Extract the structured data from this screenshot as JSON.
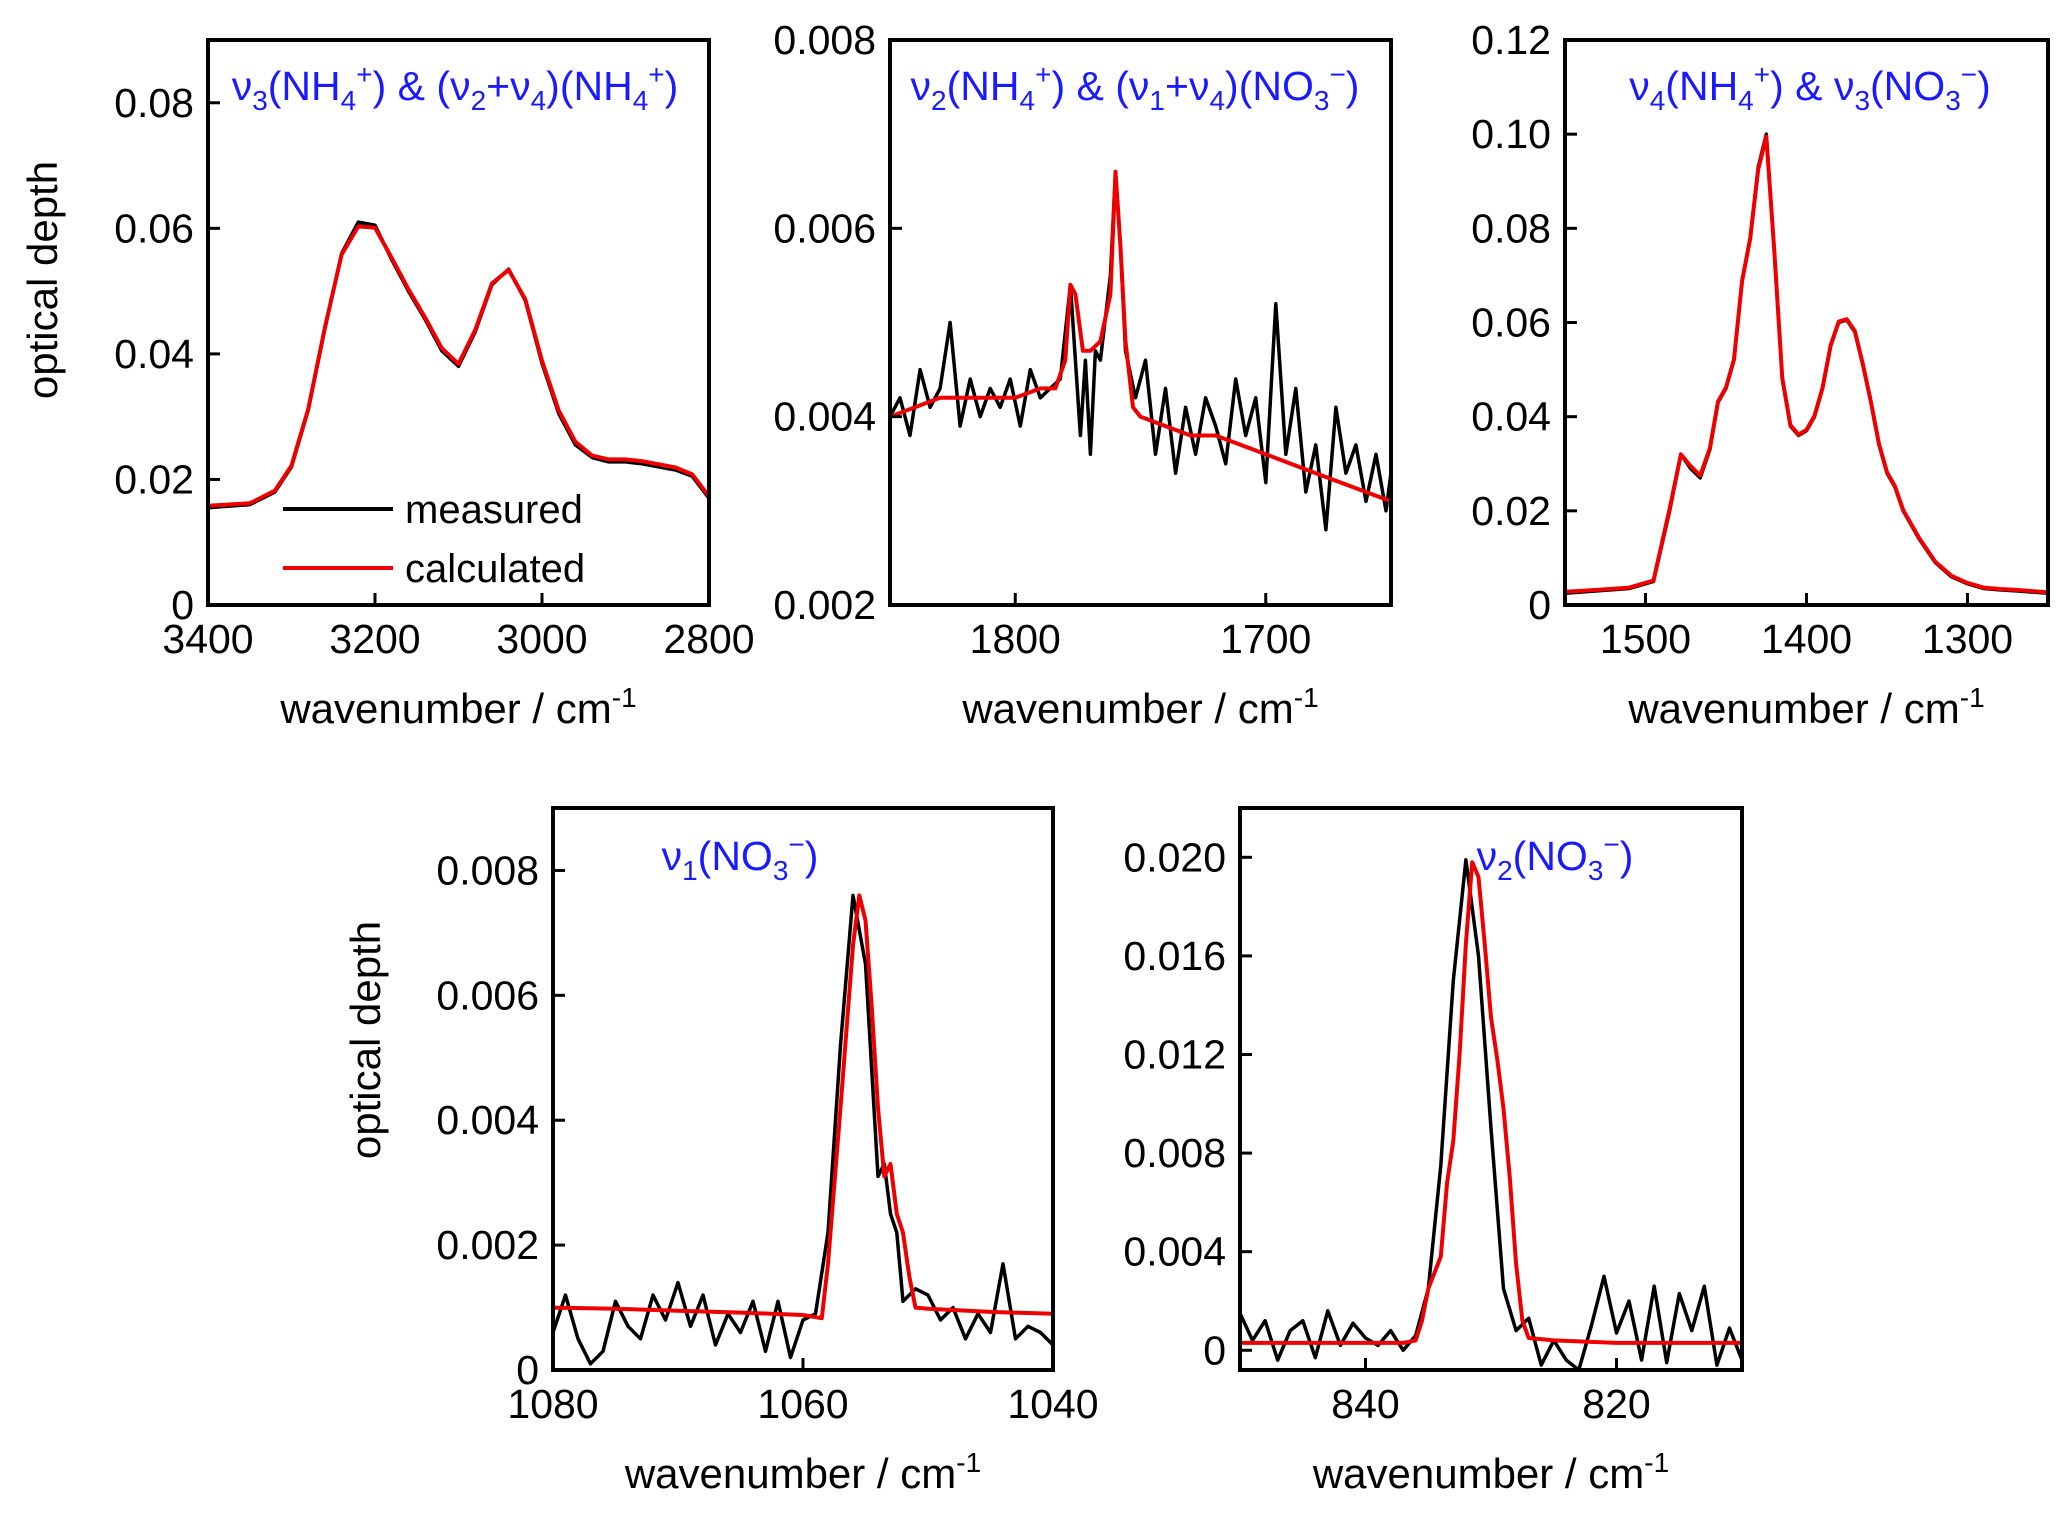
{
  "figure": {
    "ylabel": "optical depth",
    "xlabel": "wavenumber / cm",
    "xlabel_sup": "-1"
  },
  "legend": {
    "measured": "measured",
    "calculated": "calculated"
  },
  "colors": {
    "measured": "#000000",
    "calculated": "#ee0000",
    "annotation": "#1a1aff"
  },
  "chart_data": [
    {
      "type": "line",
      "title": "ν3(NH4+) & (ν2+ν4)(NH4+)",
      "xlabel": "wavenumber / cm-1",
      "ylabel": "optical depth",
      "xlim": [
        3400,
        2800
      ],
      "ylim": [
        0,
        0.09
      ],
      "xticks": [
        3400,
        3200,
        3000,
        2800
      ],
      "yticks": [
        0,
        0.02,
        0.04,
        0.06,
        0.08
      ],
      "ytick_labels": [
        "0",
        "0.02",
        "0.04",
        "0.06",
        "0.08"
      ],
      "legend": {
        "show": true,
        "placement": "bottom-center"
      },
      "series": [
        {
          "name": "measured",
          "x": [
            3400,
            3350,
            3320,
            3300,
            3280,
            3260,
            3240,
            3220,
            3200,
            3180,
            3160,
            3140,
            3120,
            3100,
            3080,
            3060,
            3040,
            3020,
            3000,
            2980,
            2960,
            2940,
            2920,
            2900,
            2880,
            2860,
            2840,
            2820,
            2800
          ],
          "y": [
            0.0155,
            0.016,
            0.018,
            0.022,
            0.031,
            0.044,
            0.056,
            0.061,
            0.0605,
            0.055,
            0.05,
            0.0455,
            0.0405,
            0.038,
            0.0435,
            0.051,
            0.0535,
            0.0485,
            0.0385,
            0.0305,
            0.0255,
            0.0235,
            0.0228,
            0.0228,
            0.0225,
            0.022,
            0.0215,
            0.0205,
            0.017
          ]
        },
        {
          "name": "calculated",
          "x": [
            3400,
            3350,
            3320,
            3300,
            3280,
            3260,
            3240,
            3220,
            3200,
            3180,
            3160,
            3140,
            3120,
            3100,
            3080,
            3060,
            3040,
            3020,
            3000,
            2980,
            2960,
            2940,
            2920,
            2900,
            2880,
            2860,
            2840,
            2820,
            2800
          ],
          "y": [
            0.0158,
            0.0162,
            0.0182,
            0.0222,
            0.0312,
            0.0442,
            0.0558,
            0.0603,
            0.0601,
            0.0553,
            0.0503,
            0.0458,
            0.0409,
            0.0384,
            0.0438,
            0.0512,
            0.0534,
            0.0487,
            0.0389,
            0.031,
            0.026,
            0.0238,
            0.0232,
            0.0232,
            0.0229,
            0.0224,
            0.0219,
            0.0208,
            0.0173
          ]
        }
      ]
    },
    {
      "type": "line",
      "title": "ν2(NH4+) & (ν1+ν4)(NO3−)",
      "xlabel": "wavenumber / cm-1",
      "ylabel": "",
      "xlim": [
        1850,
        1650
      ],
      "ylim": [
        0.002,
        0.008
      ],
      "xticks": [
        1800,
        1700
      ],
      "yticks": [
        0.002,
        0.004,
        0.006,
        0.008
      ],
      "ytick_labels": [
        "0.002",
        "0.004",
        "0.006",
        "0.008"
      ],
      "series": [
        {
          "name": "measured",
          "x": [
            1850,
            1846,
            1842,
            1838,
            1834,
            1830,
            1826,
            1822,
            1818,
            1814,
            1810,
            1806,
            1802,
            1798,
            1794,
            1790,
            1786,
            1782,
            1778,
            1774,
            1772,
            1770,
            1768,
            1766,
            1762,
            1760,
            1758,
            1756,
            1752,
            1748,
            1744,
            1740,
            1736,
            1732,
            1728,
            1724,
            1720,
            1716,
            1712,
            1708,
            1704,
            1700,
            1696,
            1692,
            1688,
            1684,
            1680,
            1676,
            1672,
            1668,
            1664,
            1660,
            1656,
            1652,
            1650
          ],
          "y": [
            0.004,
            0.0042,
            0.0038,
            0.0045,
            0.0041,
            0.0043,
            0.005,
            0.0039,
            0.0044,
            0.004,
            0.0043,
            0.0041,
            0.0044,
            0.0039,
            0.0045,
            0.0042,
            0.0043,
            0.0044,
            0.0054,
            0.0038,
            0.0046,
            0.0036,
            0.0047,
            0.0046,
            0.0055,
            0.0066,
            0.0058,
            0.0047,
            0.0042,
            0.0046,
            0.0036,
            0.0043,
            0.0034,
            0.0041,
            0.0036,
            0.0042,
            0.0039,
            0.0035,
            0.0044,
            0.0038,
            0.0042,
            0.0033,
            0.0052,
            0.0036,
            0.0043,
            0.0032,
            0.0037,
            0.0028,
            0.0041,
            0.0034,
            0.0037,
            0.0031,
            0.0036,
            0.003,
            0.0034
          ]
        },
        {
          "name": "calculated",
          "x": [
            1850,
            1840,
            1830,
            1820,
            1810,
            1800,
            1790,
            1784,
            1780,
            1778,
            1776,
            1773,
            1770,
            1766,
            1762,
            1760,
            1758,
            1756,
            1753,
            1750,
            1740,
            1730,
            1720,
            1710,
            1700,
            1690,
            1680,
            1670,
            1660,
            1650
          ],
          "y": [
            0.004,
            0.0041,
            0.0042,
            0.0042,
            0.0042,
            0.0042,
            0.0043,
            0.0043,
            0.0046,
            0.0054,
            0.0053,
            0.0047,
            0.0047,
            0.0048,
            0.0053,
            0.0066,
            0.0058,
            0.0048,
            0.0041,
            0.004,
            0.0039,
            0.0038,
            0.0038,
            0.0037,
            0.0036,
            0.0035,
            0.0034,
            0.0033,
            0.0032,
            0.0031
          ]
        }
      ]
    },
    {
      "type": "line",
      "title": "ν4(NH4+) & ν3(NO3−)",
      "xlabel": "wavenumber / cm-1",
      "ylabel": "",
      "xlim": [
        1550,
        1250
      ],
      "ylim": [
        0,
        0.12
      ],
      "xticks": [
        1500,
        1400,
        1300
      ],
      "yticks": [
        0,
        0.02,
        0.04,
        0.06,
        0.08,
        0.1,
        0.12
      ],
      "ytick_labels": [
        "0",
        "0.02",
        "0.04",
        "0.06",
        "0.08",
        "0.10",
        "0.12"
      ],
      "series": [
        {
          "name": "measured",
          "x": [
            1550,
            1530,
            1510,
            1495,
            1485,
            1478,
            1472,
            1466,
            1460,
            1455,
            1450,
            1445,
            1440,
            1435,
            1430,
            1425,
            1420,
            1415,
            1410,
            1405,
            1400,
            1395,
            1390,
            1385,
            1380,
            1375,
            1370,
            1365,
            1360,
            1355,
            1350,
            1345,
            1340,
            1330,
            1320,
            1310,
            1300,
            1290,
            1280,
            1270,
            1250
          ],
          "y": [
            0.0025,
            0.003,
            0.0035,
            0.005,
            0.02,
            0.032,
            0.029,
            0.027,
            0.033,
            0.043,
            0.046,
            0.052,
            0.069,
            0.078,
            0.093,
            0.1,
            0.075,
            0.048,
            0.038,
            0.036,
            0.037,
            0.04,
            0.046,
            0.055,
            0.06,
            0.0605,
            0.058,
            0.051,
            0.043,
            0.034,
            0.028,
            0.025,
            0.02,
            0.014,
            0.009,
            0.006,
            0.0045,
            0.0035,
            0.0032,
            0.003,
            0.0025
          ]
        },
        {
          "name": "calculated",
          "x": [
            1550,
            1530,
            1510,
            1495,
            1485,
            1478,
            1472,
            1466,
            1460,
            1455,
            1450,
            1445,
            1440,
            1435,
            1430,
            1425,
            1420,
            1415,
            1410,
            1405,
            1400,
            1395,
            1390,
            1385,
            1380,
            1375,
            1370,
            1365,
            1360,
            1355,
            1350,
            1345,
            1340,
            1330,
            1320,
            1310,
            1300,
            1290,
            1280,
            1270,
            1250
          ],
          "y": [
            0.0028,
            0.0032,
            0.0037,
            0.0052,
            0.0205,
            0.032,
            0.0295,
            0.0275,
            0.0333,
            0.0432,
            0.0462,
            0.0522,
            0.0688,
            0.0778,
            0.0925,
            0.0995,
            0.0752,
            0.0482,
            0.0382,
            0.0362,
            0.0372,
            0.0402,
            0.0462,
            0.0552,
            0.0602,
            0.0607,
            0.0582,
            0.0512,
            0.0432,
            0.0342,
            0.0282,
            0.0252,
            0.0202,
            0.0142,
            0.0092,
            0.0062,
            0.0047,
            0.0037,
            0.0034,
            0.0032,
            0.0027
          ]
        }
      ]
    },
    {
      "type": "line",
      "title": "ν1(NO3−)",
      "xlabel": "wavenumber / cm-1",
      "ylabel": "optical depth",
      "xlim": [
        1080,
        1040
      ],
      "ylim": [
        0,
        0.009
      ],
      "xticks": [
        1080,
        1060,
        1040
      ],
      "yticks": [
        0,
        0.002,
        0.004,
        0.006,
        0.008
      ],
      "ytick_labels": [
        "0",
        "0.002",
        "0.004",
        "0.006",
        "0.008"
      ],
      "series": [
        {
          "name": "measured",
          "x": [
            1080,
            1079,
            1078,
            1077,
            1076,
            1075,
            1074,
            1073,
            1072,
            1071,
            1070,
            1069,
            1068,
            1067,
            1066,
            1065,
            1064,
            1063,
            1062,
            1061,
            1060,
            1059,
            1058,
            1057,
            1056,
            1055,
            1054,
            1053.5,
            1053,
            1052.5,
            1052,
            1051,
            1050,
            1049,
            1048,
            1047,
            1046,
            1045,
            1044,
            1043,
            1042,
            1041,
            1040
          ],
          "y": [
            0.0006,
            0.0012,
            0.0005,
            0.0001,
            0.0003,
            0.0011,
            0.0007,
            0.0005,
            0.0012,
            0.0008,
            0.0014,
            0.0007,
            0.0012,
            0.0004,
            0.0009,
            0.0006,
            0.0011,
            0.0003,
            0.0011,
            0.0002,
            0.0008,
            0.0009,
            0.0022,
            0.0052,
            0.0076,
            0.0065,
            0.0031,
            0.0033,
            0.0025,
            0.0022,
            0.0011,
            0.0013,
            0.0012,
            0.0008,
            0.001,
            0.0005,
            0.0009,
            0.0006,
            0.0017,
            0.0005,
            0.0007,
            0.0006,
            0.0004
          ]
        },
        {
          "name": "calculated",
          "x": [
            1080,
            1075,
            1070,
            1065,
            1060,
            1058.5,
            1058,
            1057,
            1056,
            1055.5,
            1055,
            1054.5,
            1054,
            1053.5,
            1053,
            1052.5,
            1052,
            1051.5,
            1051,
            1050,
            1045,
            1040
          ],
          "y": [
            0.001,
            0.00098,
            0.00095,
            0.00092,
            0.00088,
            0.00083,
            0.0017,
            0.0042,
            0.0068,
            0.0076,
            0.0072,
            0.0058,
            0.0042,
            0.0031,
            0.0033,
            0.0025,
            0.0022,
            0.0015,
            0.001,
            0.00098,
            0.00093,
            0.0009
          ]
        }
      ]
    },
    {
      "type": "line",
      "title": "ν2(NO3−)",
      "xlabel": "wavenumber / cm-1",
      "ylabel": "",
      "xlim": [
        850,
        810
      ],
      "ylim": [
        -0.0008,
        0.022
      ],
      "xticks": [
        840,
        820
      ],
      "yticks": [
        0,
        0.004,
        0.008,
        0.012,
        0.016,
        0.02
      ],
      "ytick_labels": [
        "0",
        "0.004",
        "0.008",
        "0.012",
        "0.016",
        "0.020"
      ],
      "series": [
        {
          "name": "measured",
          "x": [
            850,
            849,
            848,
            847,
            846,
            845,
            844,
            843,
            842,
            841,
            840,
            839,
            838,
            837,
            836,
            835,
            834,
            833,
            832,
            831,
            830,
            829,
            828,
            827,
            826,
            825,
            824,
            823,
            822,
            821,
            820,
            819,
            818,
            817,
            816,
            815,
            814,
            813,
            812,
            811,
            810
          ],
          "y": [
            0.0015,
            0.0004,
            0.0012,
            -0.0004,
            0.0008,
            0.0012,
            -0.0003,
            0.0016,
            0.0002,
            0.0011,
            0.0005,
            0.0002,
            0.0008,
            0.0,
            0.0006,
            0.0025,
            0.0075,
            0.015,
            0.0199,
            0.016,
            0.009,
            0.0025,
            0.0008,
            0.0013,
            -0.0006,
            0.0004,
            -0.0004,
            -0.0008,
            0.001,
            0.003,
            0.0007,
            0.002,
            -0.0004,
            0.0026,
            -0.0005,
            0.0023,
            0.0008,
            0.0026,
            -0.0006,
            0.0009,
            -0.0004
          ]
        },
        {
          "name": "calculated",
          "x": [
            850,
            845,
            840,
            837,
            836,
            835.5,
            835,
            834,
            833.5,
            833,
            832.5,
            832,
            831.5,
            831,
            830.5,
            830,
            829.5,
            829,
            828.5,
            828,
            827.5,
            827,
            825,
            820,
            815,
            810
          ],
          "y": [
            0.0003,
            0.0003,
            0.0003,
            0.0003,
            0.0004,
            0.0012,
            0.0025,
            0.0038,
            0.0068,
            0.0085,
            0.012,
            0.0165,
            0.0198,
            0.0192,
            0.0165,
            0.0135,
            0.0118,
            0.0098,
            0.007,
            0.0035,
            0.0012,
            0.0005,
            0.0004,
            0.0003,
            0.0003,
            0.0003
          ]
        }
      ]
    }
  ]
}
